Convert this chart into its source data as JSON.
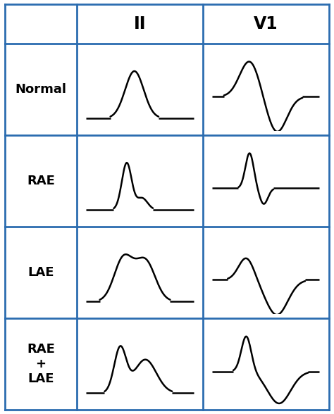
{
  "col_headers": [
    "II",
    "V1"
  ],
  "row_labels": [
    "Normal",
    "RAE",
    "LAE",
    "RAE\n+\nLAE"
  ],
  "grid_color": "#2B6CB0",
  "line_color": "#000000",
  "bg_color": "#ffffff",
  "header_fontsize": 17,
  "label_fontsize": 13,
  "line_width": 1.8
}
